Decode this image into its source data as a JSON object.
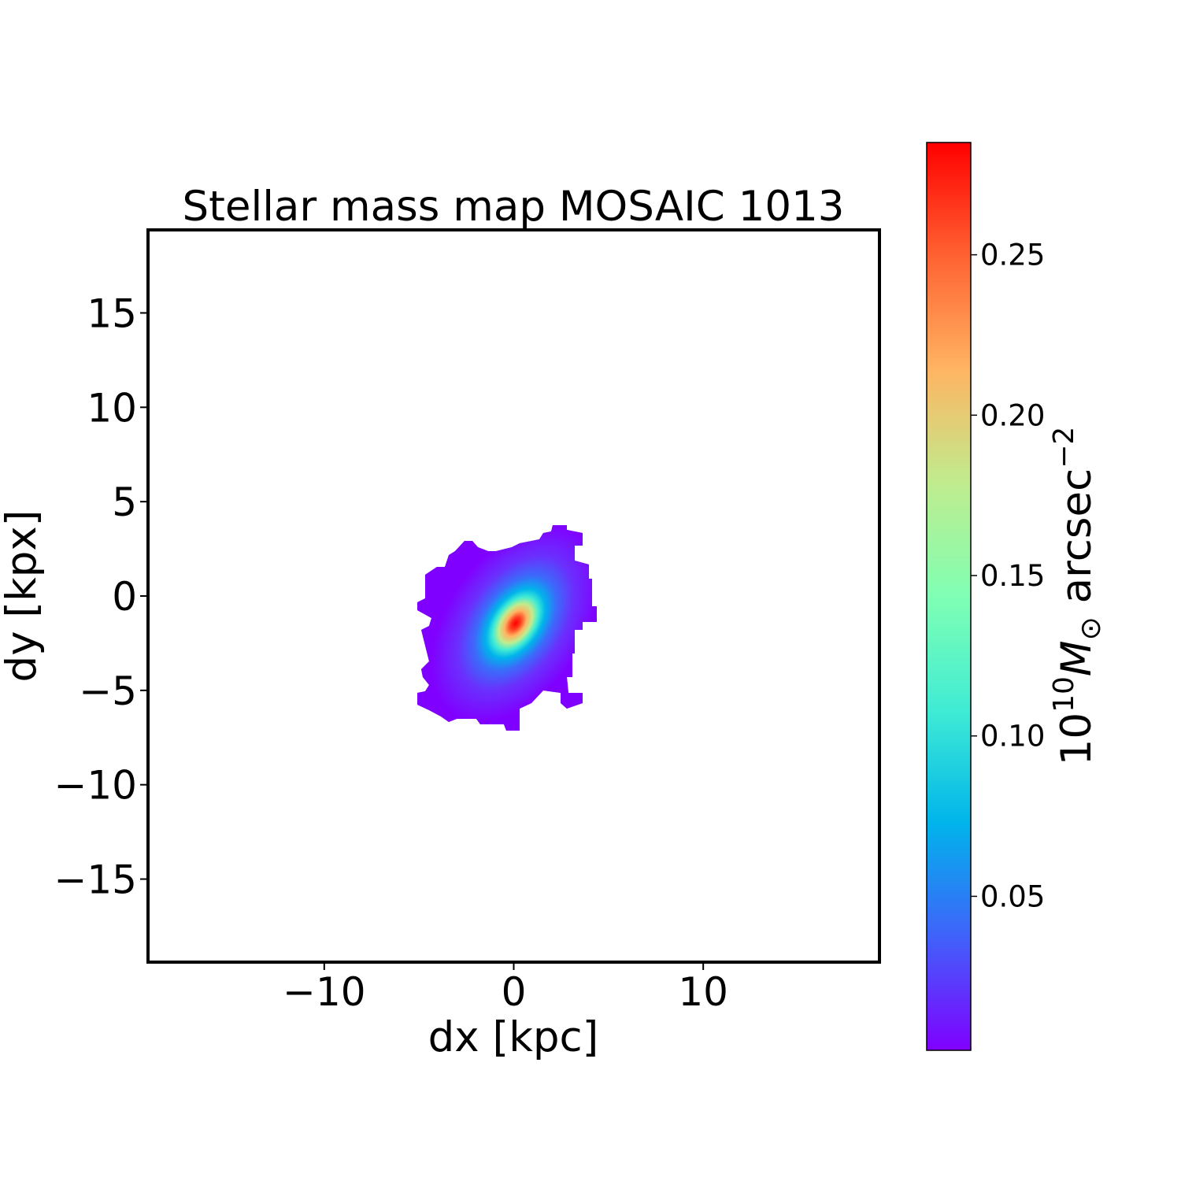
{
  "chart_data": {
    "type": "heatmap",
    "title": "Stellar mass map MOSAIC 1013",
    "xlabel": "dx [kpc]",
    "ylabel": "dy [kpx]",
    "xlim": [
      -19.3,
      19.3
    ],
    "ylim": [
      -19.4,
      19.4
    ],
    "xticks": [
      -10,
      0,
      10
    ],
    "xtick_labels": [
      "−10",
      "0",
      "10"
    ],
    "yticks": [
      -15,
      -10,
      -5,
      0,
      5,
      10,
      15
    ],
    "ytick_labels": [
      "−15",
      "−10",
      "−5",
      "0",
      "5",
      "10",
      "15"
    ],
    "colormap": "rainbow",
    "colorbar": {
      "range": [
        0.002,
        0.285
      ],
      "ticks": [
        0.05,
        0.1,
        0.15,
        0.2,
        0.25
      ],
      "tick_labels": [
        "0.05",
        "0.10",
        "0.15",
        "0.20",
        "0.25"
      ],
      "label_parts": {
        "base": "10",
        "exp": "10",
        "sym": "M",
        "sub": "⊙",
        "unit": " arcsec",
        "unit_exp": "−2"
      }
    },
    "source": {
      "peak_value": 0.285,
      "peak_position": [
        0.1,
        -1.45
      ],
      "extent_x": [
        -5,
        4.5
      ],
      "extent_y": [
        -7,
        3.7
      ],
      "major_axis_position_angle_deg": 55
    },
    "colors": {
      "min": "#8000ff",
      "max": "#ff0000",
      "background": "#ffffff"
    }
  }
}
